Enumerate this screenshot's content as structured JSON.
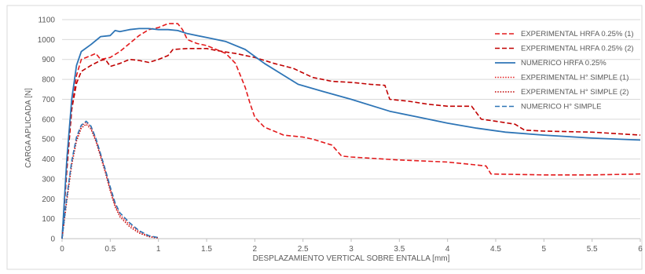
{
  "chart_data": {
    "type": "line",
    "title": "",
    "xlabel": "DESPLAZAMIENTO VERTICAL SOBRE ENTALLA [mm]",
    "ylabel": "CARGA APLICADA [N]",
    "xlim": [
      0,
      6
    ],
    "ylim": [
      0,
      1100
    ],
    "x_ticks": [
      "0",
      "0.5",
      "1",
      "1.5",
      "2",
      "2.5",
      "3",
      "3.5",
      "4",
      "4.5",
      "5",
      "5.5",
      "6"
    ],
    "y_ticks": [
      "0",
      "100",
      "200",
      "300",
      "400",
      "500",
      "600",
      "700",
      "800",
      "900",
      "1000",
      "1100"
    ],
    "grid": "horizontal",
    "legend_position": "top-right",
    "series": [
      {
        "name": "EXPERIMENTAL HRFA 0.25% (1)",
        "color": "#e31a1c",
        "style": "dashed",
        "points": [
          [
            0,
            0
          ],
          [
            0.05,
            350
          ],
          [
            0.1,
            650
          ],
          [
            0.15,
            820
          ],
          [
            0.2,
            900
          ],
          [
            0.3,
            920
          ],
          [
            0.35,
            930
          ],
          [
            0.4,
            900
          ],
          [
            0.5,
            910
          ],
          [
            0.6,
            940
          ],
          [
            0.7,
            980
          ],
          [
            0.8,
            1020
          ],
          [
            0.9,
            1050
          ],
          [
            1.0,
            1060
          ],
          [
            1.1,
            1080
          ],
          [
            1.2,
            1080
          ],
          [
            1.25,
            1050
          ],
          [
            1.3,
            1000
          ],
          [
            1.4,
            980
          ],
          [
            1.5,
            970
          ],
          [
            1.6,
            950
          ],
          [
            1.7,
            930
          ],
          [
            1.8,
            880
          ],
          [
            1.9,
            760
          ],
          [
            1.95,
            680
          ],
          [
            2.0,
            610
          ],
          [
            2.1,
            560
          ],
          [
            2.2,
            540
          ],
          [
            2.3,
            520
          ],
          [
            2.5,
            510
          ],
          [
            2.6,
            500
          ],
          [
            2.8,
            470
          ],
          [
            2.9,
            415
          ],
          [
            3.0,
            410
          ],
          [
            3.5,
            395
          ],
          [
            4.0,
            385
          ],
          [
            4.4,
            365
          ],
          [
            4.45,
            325
          ],
          [
            5.0,
            320
          ],
          [
            5.5,
            320
          ],
          [
            6.0,
            325
          ]
        ]
      },
      {
        "name": "EXPERIMENTAL HRFA 0.25% (2)",
        "color": "#c00000",
        "style": "dashed",
        "points": [
          [
            0,
            0
          ],
          [
            0.05,
            350
          ],
          [
            0.1,
            650
          ],
          [
            0.15,
            780
          ],
          [
            0.2,
            840
          ],
          [
            0.3,
            870
          ],
          [
            0.4,
            895
          ],
          [
            0.45,
            900
          ],
          [
            0.5,
            865
          ],
          [
            0.6,
            880
          ],
          [
            0.7,
            900
          ],
          [
            0.8,
            895
          ],
          [
            0.9,
            885
          ],
          [
            1.0,
            900
          ],
          [
            1.1,
            920
          ],
          [
            1.15,
            950
          ],
          [
            1.3,
            955
          ],
          [
            1.5,
            955
          ],
          [
            1.6,
            945
          ],
          [
            1.8,
            930
          ],
          [
            2.0,
            910
          ],
          [
            2.2,
            880
          ],
          [
            2.4,
            855
          ],
          [
            2.6,
            810
          ],
          [
            2.8,
            790
          ],
          [
            3.0,
            785
          ],
          [
            3.2,
            775
          ],
          [
            3.35,
            770
          ],
          [
            3.4,
            700
          ],
          [
            3.6,
            690
          ],
          [
            3.8,
            675
          ],
          [
            4.0,
            665
          ],
          [
            4.25,
            665
          ],
          [
            4.35,
            600
          ],
          [
            4.5,
            590
          ],
          [
            4.7,
            575
          ],
          [
            4.8,
            545
          ],
          [
            5.0,
            540
          ],
          [
            5.5,
            535
          ],
          [
            6.0,
            520
          ]
        ]
      },
      {
        "name": "NUMERICO HRFA 0.25%",
        "color": "#2e75b6",
        "style": "solid",
        "points": [
          [
            0,
            0
          ],
          [
            0.05,
            400
          ],
          [
            0.1,
            700
          ],
          [
            0.15,
            870
          ],
          [
            0.2,
            940
          ],
          [
            0.3,
            975
          ],
          [
            0.4,
            1015
          ],
          [
            0.5,
            1020
          ],
          [
            0.55,
            1045
          ],
          [
            0.6,
            1040
          ],
          [
            0.7,
            1050
          ],
          [
            0.8,
            1055
          ],
          [
            0.9,
            1055
          ],
          [
            1.0,
            1050
          ],
          [
            1.1,
            1050
          ],
          [
            1.2,
            1045
          ],
          [
            1.3,
            1030
          ],
          [
            1.5,
            1010
          ],
          [
            1.7,
            990
          ],
          [
            1.9,
            950
          ],
          [
            2.1,
            880
          ],
          [
            2.3,
            820
          ],
          [
            2.45,
            775
          ],
          [
            2.7,
            740
          ],
          [
            3.0,
            700
          ],
          [
            3.4,
            640
          ],
          [
            3.7,
            610
          ],
          [
            4.0,
            580
          ],
          [
            4.3,
            555
          ],
          [
            4.6,
            535
          ],
          [
            5.0,
            520
          ],
          [
            5.5,
            505
          ],
          [
            6.0,
            495
          ]
        ]
      },
      {
        "name": "EXPERIMENTAL H° SIMPLE (1)",
        "color": "#e31a1c",
        "style": "dotted",
        "points": [
          [
            0,
            0
          ],
          [
            0.05,
            200
          ],
          [
            0.1,
            380
          ],
          [
            0.15,
            500
          ],
          [
            0.2,
            565
          ],
          [
            0.25,
            585
          ],
          [
            0.3,
            560
          ],
          [
            0.35,
            500
          ],
          [
            0.4,
            420
          ],
          [
            0.45,
            340
          ],
          [
            0.5,
            250
          ],
          [
            0.55,
            170
          ],
          [
            0.6,
            120
          ],
          [
            0.7,
            70
          ],
          [
            0.8,
            35
          ],
          [
            0.9,
            12
          ],
          [
            0.95,
            5
          ],
          [
            1.0,
            3
          ]
        ]
      },
      {
        "name": "EXPERIMENTAL H° SIMPLE (2)",
        "color": "#c00000",
        "style": "dotted",
        "points": [
          [
            0,
            0
          ],
          [
            0.05,
            190
          ],
          [
            0.1,
            370
          ],
          [
            0.15,
            490
          ],
          [
            0.2,
            555
          ],
          [
            0.25,
            575
          ],
          [
            0.3,
            550
          ],
          [
            0.35,
            490
          ],
          [
            0.4,
            410
          ],
          [
            0.45,
            330
          ],
          [
            0.5,
            240
          ],
          [
            0.55,
            160
          ],
          [
            0.6,
            110
          ],
          [
            0.7,
            60
          ],
          [
            0.8,
            28
          ],
          [
            0.9,
            10
          ],
          [
            1.0,
            5
          ]
        ]
      },
      {
        "name": "NUMERICO H° SIMPLE",
        "color": "#2e75b6",
        "style": "dashed",
        "points": [
          [
            0,
            0
          ],
          [
            0.05,
            210
          ],
          [
            0.1,
            390
          ],
          [
            0.15,
            510
          ],
          [
            0.2,
            570
          ],
          [
            0.25,
            590
          ],
          [
            0.3,
            565
          ],
          [
            0.35,
            505
          ],
          [
            0.4,
            425
          ],
          [
            0.45,
            345
          ],
          [
            0.5,
            260
          ],
          [
            0.55,
            180
          ],
          [
            0.6,
            130
          ],
          [
            0.7,
            80
          ],
          [
            0.8,
            40
          ],
          [
            0.9,
            15
          ],
          [
            1.0,
            5
          ]
        ]
      }
    ]
  }
}
